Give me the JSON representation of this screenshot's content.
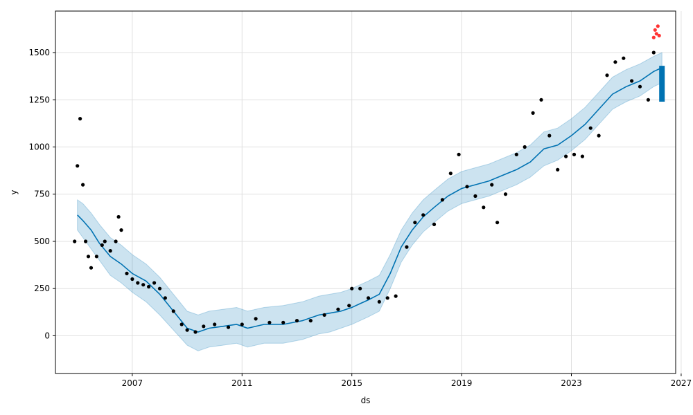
{
  "chart_data": {
    "type": "line",
    "title": "",
    "xlabel": "ds",
    "ylabel": "y",
    "xlim": [
      2004.2,
      2026.8
    ],
    "ylim": [
      -200,
      1720
    ],
    "grid": true,
    "x_ticks": [
      2007,
      2011,
      2015,
      2019,
      2023,
      2027
    ],
    "y_ticks": [
      0,
      250,
      500,
      750,
      1000,
      1250,
      1500
    ],
    "colors": {
      "observed": "#000000",
      "forecast_line": "#0072B2",
      "uncertainty_band": "#0072B2",
      "recent_points": "#ff0000"
    },
    "series": [
      {
        "role": "forecast",
        "x": [
          2005.0,
          2005.2,
          2005.5,
          2005.8,
          2006.2,
          2006.6,
          2007.0,
          2007.5,
          2008.0,
          2008.5,
          2009.0,
          2009.4,
          2009.8,
          2010.3,
          2010.8,
          2011.2,
          2011.8,
          2012.5,
          2013.2,
          2013.8,
          2014.2,
          2014.6,
          2015.0,
          2015.3,
          2015.6,
          2016.0,
          2016.4,
          2016.8,
          2017.2,
          2017.6,
          2018.0,
          2018.5,
          2019.0,
          2019.5,
          2020.0,
          2020.5,
          2021.0,
          2021.5,
          2022.0,
          2022.5,
          2023.0,
          2023.5,
          2024.0,
          2024.5,
          2025.0,
          2025.5,
          2026.0,
          2026.3
        ],
        "y": [
          640,
          610,
          560,
          490,
          420,
          380,
          330,
          290,
          220,
          130,
          40,
          20,
          40,
          50,
          60,
          40,
          60,
          60,
          80,
          110,
          120,
          130,
          150,
          170,
          190,
          220,
          330,
          470,
          560,
          630,
          680,
          740,
          780,
          800,
          820,
          850,
          880,
          920,
          990,
          1010,
          1060,
          1120,
          1200,
          1280,
          1320,
          1350,
          1400,
          1420
        ],
        "lower": [
          560,
          520,
          460,
          400,
          320,
          280,
          230,
          180,
          110,
          30,
          -50,
          -80,
          -60,
          -50,
          -40,
          -60,
          -40,
          -40,
          -20,
          10,
          20,
          40,
          60,
          80,
          100,
          130,
          250,
          390,
          480,
          550,
          600,
          660,
          700,
          720,
          740,
          770,
          800,
          840,
          900,
          930,
          980,
          1040,
          1120,
          1200,
          1240,
          1270,
          1320,
          1340
        ],
        "upper": [
          720,
          700,
          650,
          590,
          520,
          480,
          430,
          380,
          310,
          220,
          130,
          110,
          130,
          140,
          150,
          130,
          150,
          160,
          180,
          210,
          220,
          230,
          250,
          270,
          290,
          320,
          430,
          560,
          650,
          720,
          770,
          830,
          870,
          890,
          910,
          940,
          970,
          1010,
          1080,
          1100,
          1150,
          1210,
          1290,
          1370,
          1410,
          1440,
          1480,
          1500
        ]
      },
      {
        "role": "observed",
        "x": [
          2004.9,
          2005.0,
          2005.1,
          2005.2,
          2005.3,
          2005.4,
          2005.5,
          2005.7,
          2005.9,
          2006.0,
          2006.2,
          2006.4,
          2006.5,
          2006.6,
          2006.8,
          2007.0,
          2007.2,
          2007.4,
          2007.6,
          2007.8,
          2008.0,
          2008.2,
          2008.5,
          2008.8,
          2009.0,
          2009.3,
          2009.6,
          2010.0,
          2010.5,
          2011.0,
          2011.5,
          2012.0,
          2012.5,
          2013.0,
          2013.5,
          2014.0,
          2014.5,
          2014.9,
          2015.0,
          2015.3,
          2015.6,
          2016.0,
          2016.3,
          2016.6,
          2017.0,
          2017.3,
          2017.6,
          2018.0,
          2018.3,
          2018.6,
          2018.9,
          2019.2,
          2019.5,
          2019.8,
          2020.1,
          2020.3,
          2020.6,
          2021.0,
          2021.3,
          2021.6,
          2021.9,
          2022.2,
          2022.5,
          2022.8,
          2023.1,
          2023.4,
          2023.7,
          2024.0,
          2024.3,
          2024.6,
          2024.9,
          2025.2,
          2025.5,
          2025.8,
          2026.0
        ],
        "y": [
          500,
          900,
          1150,
          800,
          500,
          420,
          360,
          420,
          480,
          500,
          450,
          500,
          630,
          560,
          330,
          300,
          280,
          270,
          260,
          280,
          250,
          200,
          130,
          60,
          30,
          20,
          50,
          60,
          45,
          60,
          90,
          70,
          70,
          80,
          80,
          110,
          140,
          160,
          250,
          250,
          200,
          180,
          200,
          210,
          470,
          600,
          640,
          590,
          720,
          860,
          960,
          790,
          740,
          680,
          800,
          600,
          750,
          960,
          1000,
          1180,
          1250,
          1060,
          880,
          950,
          960,
          950,
          1100,
          1060,
          1380,
          1450,
          1470,
          1350,
          1320,
          1250,
          1500
        ]
      },
      {
        "role": "recent",
        "x": [
          2026.0,
          2026.05,
          2026.1,
          2026.15,
          2026.2
        ],
        "y": [
          1580,
          1620,
          1600,
          1640,
          1590
        ]
      }
    ]
  }
}
